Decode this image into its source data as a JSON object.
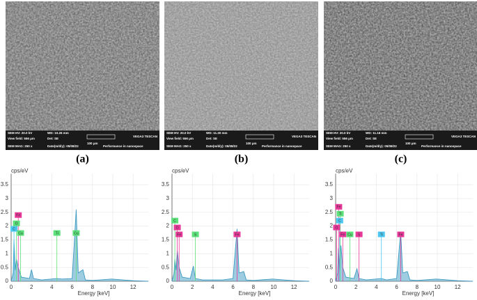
{
  "panels": [
    {
      "label": "(a)",
      "sem": [
        "SEM HV: 20.0 kV",
        "WD: 10.26 mm",
        "VEGA3 TESCAN",
        "View field: 556 μm",
        "Det: SE",
        "100 μm",
        "SEM MAG: 250 x",
        "Date(m/d/y): 05/08/22",
        "Performance in nanospace"
      ]
    },
    {
      "label": "(b)",
      "sem": [
        "SEM HV: 20.0 kV",
        "WD: 11.30 mm",
        "VEGA3 TESCAN",
        "View field: 556 μm",
        "Det: SE",
        "100 μm",
        "SEM MAG: 250 x",
        "Date(m/d/y): 05/08/22",
        "Performance in nanospace"
      ]
    },
    {
      "label": "(c)",
      "sem": [
        "SEM HV: 20.0 kV",
        "WD: 11.16 mm",
        "VEGA3 TESCAN",
        "View field: 556 μm",
        "Det: SE",
        "100 μm",
        "SEM MAG: 250 x",
        "Date(m/d/y): 05/08/22",
        "Performance in nanospace"
      ]
    }
  ],
  "chart_data": [
    {
      "type": "line",
      "y_label": "cps/eV",
      "x_label": "Energy [keV]",
      "xlim": [
        0,
        13.5
      ],
      "ylim": [
        0,
        3.9
      ],
      "xticks": [
        0,
        2,
        4,
        6,
        8,
        10,
        12
      ],
      "yticks": [
        0,
        0.5,
        1,
        1.5,
        2,
        2.5,
        3,
        3.5
      ],
      "grid": true,
      "series": [
        {
          "color": "#3d9ac2",
          "x": [
            0,
            0.2,
            0.28,
            0.4,
            0.52,
            0.7,
            1,
            1.8,
            2,
            2.2,
            3,
            4.5,
            5,
            6,
            6.4,
            6.6,
            7.06,
            7.3,
            8,
            9.9,
            12,
            13.5
          ],
          "values": [
            0,
            0.3,
            1.5,
            0.4,
            0.8,
            0.5,
            0.15,
            0.1,
            0.42,
            0.1,
            0.05,
            0.1,
            0.08,
            0.1,
            2.6,
            0.3,
            0.42,
            0.05,
            0.03,
            0.08,
            0.02,
            0
          ]
        }
      ],
      "annotations": [
        {
          "text": "Fe",
          "x": 0.7,
          "y": 2.4,
          "color": "#e8399a"
        },
        {
          "text": "O",
          "x": 0.52,
          "y": 2.1,
          "color": "#5be07a"
        },
        {
          "text": "C",
          "x": 0.28,
          "y": 1.9,
          "color": "#4cc7f0"
        },
        {
          "text": "Cu",
          "x": 0.93,
          "y": 1.75,
          "color": "#5be07a"
        },
        {
          "text": "Ti",
          "x": 4.5,
          "y": 1.75,
          "color": "#5be07a"
        },
        {
          "text": "Cu",
          "x": 6.4,
          "y": 1.75,
          "color": "#5be07a"
        }
      ]
    },
    {
      "type": "line",
      "y_label": "cps/eV",
      "x_label": "Energy [keV]",
      "xlim": [
        0,
        13.5
      ],
      "ylim": [
        0,
        3.9
      ],
      "xticks": [
        0,
        2,
        4,
        6,
        8,
        10,
        12
      ],
      "yticks": [
        0,
        0.5,
        1,
        1.5,
        2,
        2.5,
        3,
        3.5
      ],
      "grid": true,
      "series": [
        {
          "color": "#3d9ac2",
          "x": [
            0,
            0.2,
            0.28,
            0.4,
            0.52,
            0.7,
            1,
            1.8,
            2.1,
            2.3,
            3,
            5,
            6,
            6.4,
            6.6,
            7.06,
            7.3,
            8,
            9.9,
            12,
            13.5
          ],
          "values": [
            0,
            0.3,
            0.8,
            0.4,
            1.1,
            0.5,
            0.15,
            0.1,
            0.55,
            0.1,
            0.05,
            0.05,
            0.1,
            1.9,
            0.3,
            0.35,
            0.05,
            0.03,
            0.08,
            0.02,
            0
          ]
        }
      ],
      "annotations": [
        {
          "text": "C",
          "x": 0.28,
          "y": 2.2,
          "color": "#5be07a"
        },
        {
          "text": "O",
          "x": 0.52,
          "y": 1.95,
          "color": "#e8399a"
        },
        {
          "text": "Fe",
          "x": 0.7,
          "y": 1.7,
          "color": "#e8399a"
        },
        {
          "text": "S",
          "x": 2.3,
          "y": 1.7,
          "color": "#5be07a"
        },
        {
          "text": "Fe",
          "x": 6.4,
          "y": 1.7,
          "color": "#e8399a"
        }
      ]
    },
    {
      "type": "line",
      "y_label": "cps/eV",
      "x_label": "Energy [keV]",
      "xlim": [
        0,
        13.5
      ],
      "ylim": [
        0,
        3.9
      ],
      "xticks": [
        0,
        2,
        4,
        6,
        8,
        10,
        12
      ],
      "yticks": [
        0,
        0.5,
        1,
        1.5,
        2,
        2.5,
        3,
        3.5
      ],
      "grid": true,
      "series": [
        {
          "color": "#3d9ac2",
          "x": [
            0,
            0.2,
            0.28,
            0.4,
            0.52,
            0.7,
            1,
            1.8,
            2.1,
            2.3,
            3,
            4.5,
            5,
            6,
            6.4,
            6.6,
            7.06,
            7.3,
            8,
            9.9,
            12,
            13.5
          ],
          "values": [
            0,
            0.3,
            1.2,
            0.4,
            1.3,
            0.5,
            0.15,
            0.1,
            0.45,
            0.1,
            0.05,
            0.1,
            0.05,
            0.1,
            1.8,
            0.3,
            0.35,
            0.05,
            0.03,
            0.08,
            0.02,
            0
          ]
        }
      ],
      "annotations": [
        {
          "text": "Fe",
          "x": 0.3,
          "y": 2.7,
          "color": "#e8399a"
        },
        {
          "text": "Ti",
          "x": 0.45,
          "y": 2.45,
          "color": "#5be07a"
        },
        {
          "text": "C",
          "x": 0.4,
          "y": 2.2,
          "color": "#4cc7f0"
        },
        {
          "text": "O",
          "x": 0.1,
          "y": 1.95,
          "color": "#e8399a"
        },
        {
          "text": "Fe",
          "x": 0.7,
          "y": 1.7,
          "color": "#e8399a"
        },
        {
          "text": "Cu",
          "x": 1.4,
          "y": 1.7,
          "color": "#5be07a"
        },
        {
          "text": "S",
          "x": 2.3,
          "y": 1.7,
          "color": "#e8399a"
        },
        {
          "text": "Ti",
          "x": 4.5,
          "y": 1.7,
          "color": "#4cc7f0"
        },
        {
          "text": "Fe",
          "x": 6.4,
          "y": 1.7,
          "color": "#e8399a"
        }
      ]
    }
  ]
}
